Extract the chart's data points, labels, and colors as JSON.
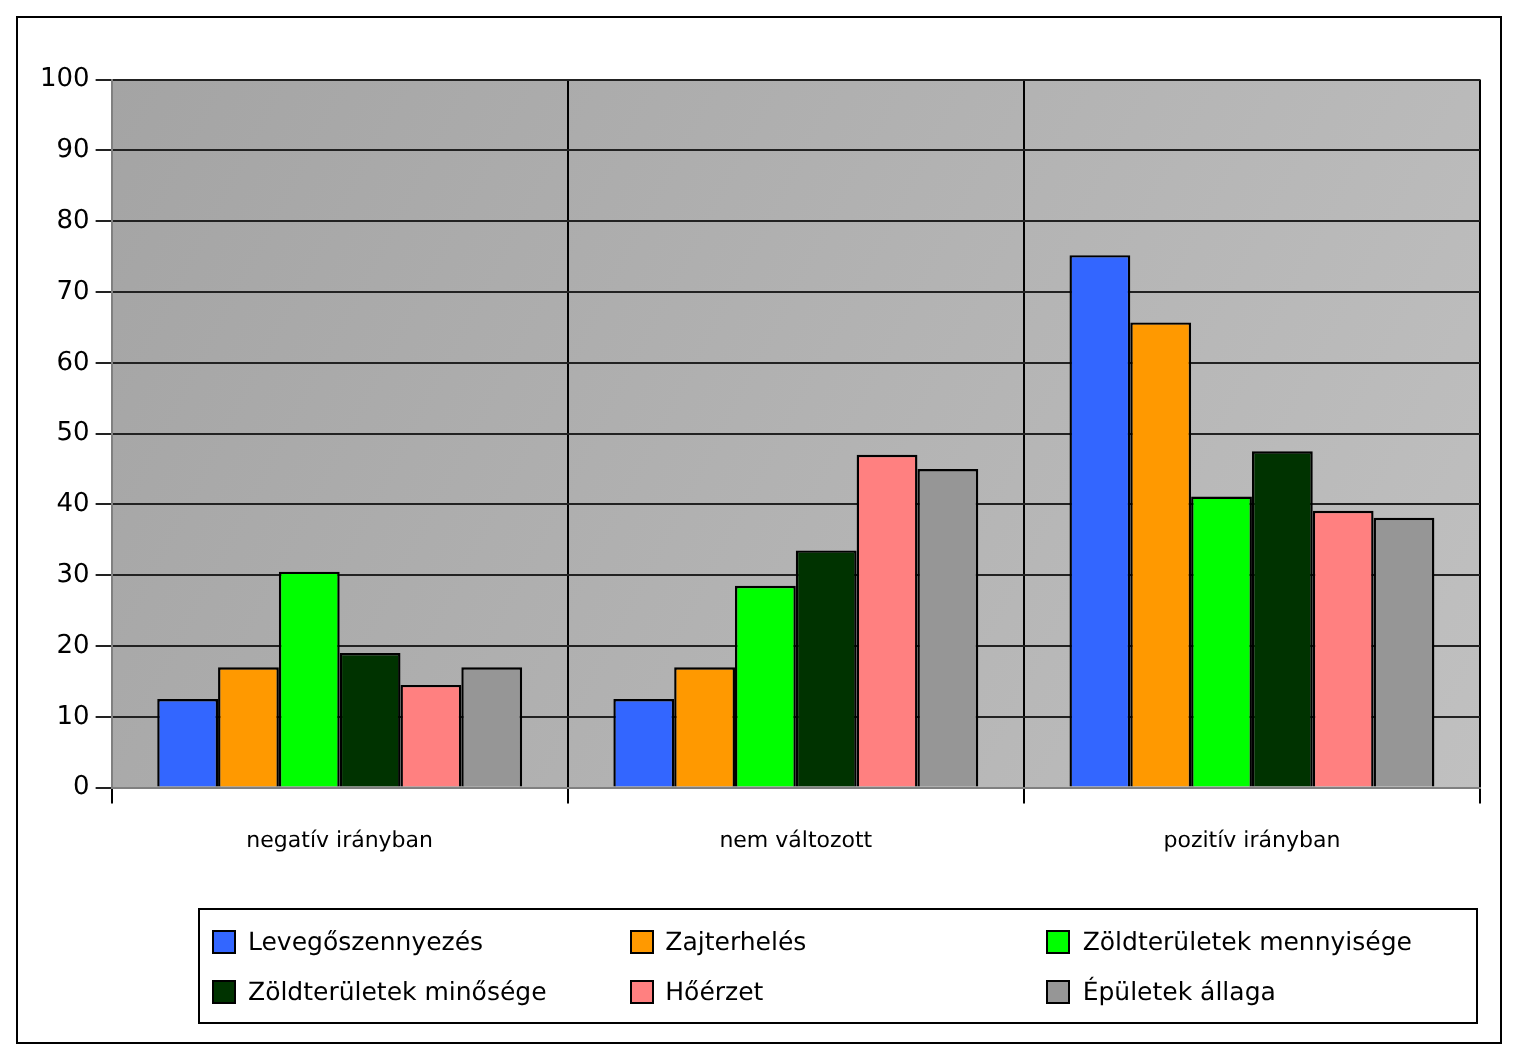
{
  "chart_data": {
    "type": "bar",
    "categories": [
      "negatív irányban",
      "nem változott",
      "pozitív irányban"
    ],
    "series": [
      {
        "name": "Levegőszennyezés",
        "color": "#3366ff",
        "values": [
          12.5,
          12.5,
          75.2
        ]
      },
      {
        "name": "Zajterhelés",
        "color": "#ff9900",
        "values": [
          17,
          17,
          65.7
        ]
      },
      {
        "name": "Zöldterületek mennyisége",
        "color": "#00ff00",
        "values": [
          30.5,
          28.5,
          41.1
        ]
      },
      {
        "name": "Zöldterületek minősége",
        "color": "#003300",
        "values": [
          19,
          33.5,
          47.5
        ]
      },
      {
        "name": "Hőérzet",
        "color": "#ff8080",
        "values": [
          14.5,
          47,
          39.1
        ]
      },
      {
        "name": "Épületek állaga",
        "color": "#969696",
        "values": [
          17,
          45,
          38.1
        ]
      }
    ],
    "ylim": [
      0,
      100
    ],
    "yticks": [
      0,
      10,
      20,
      30,
      40,
      50,
      60,
      70,
      80,
      90,
      100
    ],
    "grid": true,
    "legend": "bottom"
  }
}
